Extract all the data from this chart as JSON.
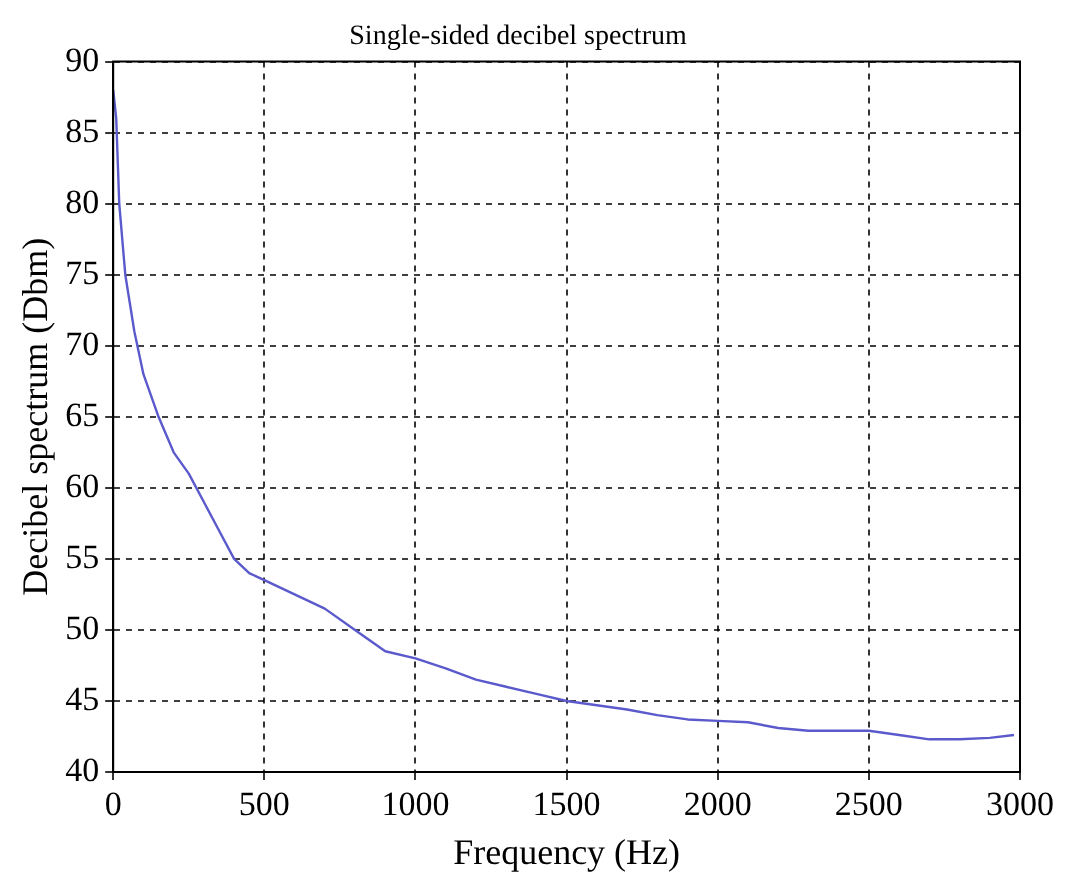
{
  "chart_data": {
    "type": "line",
    "title": "Single-sided decibel spectrum",
    "xlabel": "Frequency (Hz)",
    "ylabel": "Decibel spectrum (Dbm)",
    "x": [
      0,
      10,
      20,
      40,
      70,
      100,
      150,
      200,
      250,
      300,
      350,
      400,
      450,
      500,
      600,
      700,
      800,
      900,
      1000,
      1100,
      1200,
      1300,
      1400,
      1500,
      1600,
      1700,
      1800,
      1900,
      2000,
      2100,
      2200,
      2300,
      2400,
      2500,
      2600,
      2700,
      2800,
      2900,
      2980
    ],
    "series": [
      {
        "color": "#5a5acc",
        "values": [
          88,
          86,
          80,
          75,
          71,
          68,
          65,
          62.5,
          61,
          59,
          57,
          55,
          54,
          53.5,
          52.5,
          51.5,
          50,
          48.5,
          48,
          47.3,
          46.5,
          46,
          45.5,
          45,
          44.7,
          44.4,
          44,
          43.7,
          43.6,
          43.5,
          43.1,
          42.9,
          42.9,
          42.9,
          42.6,
          42.3,
          42.3,
          42.4,
          42.6
        ]
      }
    ],
    "xlim": [
      0,
      3000
    ],
    "xticks": [
      0,
      500,
      1000,
      1500,
      2000,
      2500,
      3000
    ],
    "ylim": [
      40,
      90
    ],
    "yticks": [
      40,
      45,
      50,
      55,
      60,
      65,
      70,
      75,
      80,
      85,
      90
    ],
    "grid": true,
    "legend": false,
    "marker": "none",
    "line_style": "solid"
  }
}
